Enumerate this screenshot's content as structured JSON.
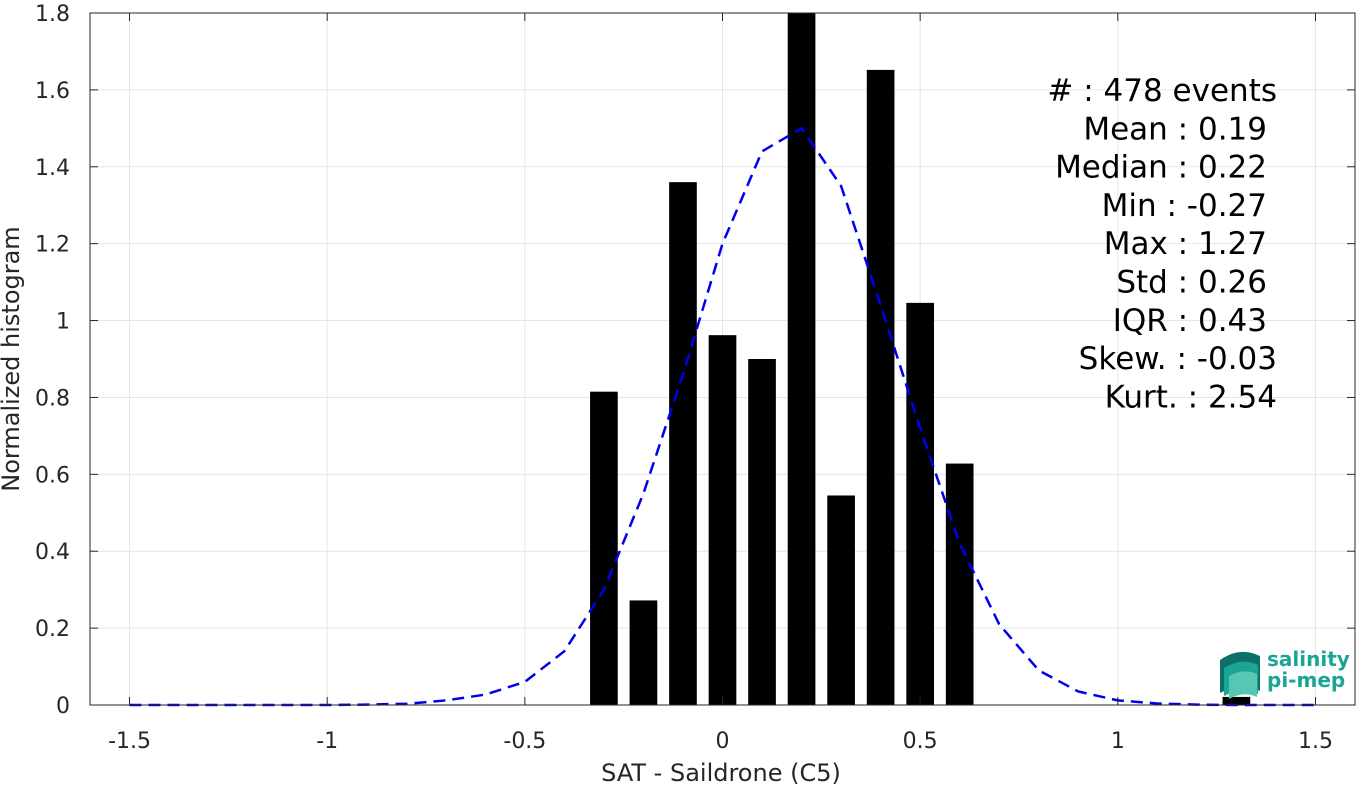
{
  "chart_data": {
    "type": "bar",
    "xlabel": "SAT - Saildrone (C5)",
    "ylabel": "Normalized histogram",
    "xlim": [
      -1.6,
      1.6
    ],
    "ylim": [
      0,
      1.8
    ],
    "xticks": [
      -1.5,
      -1,
      -0.5,
      0,
      0.5,
      1,
      1.5
    ],
    "xtick_labels": [
      "-1.5",
      "-1",
      "-0.5",
      "0",
      "0.5",
      "1",
      "1.5"
    ],
    "yticks": [
      0,
      0.2,
      0.4,
      0.6,
      0.8,
      1,
      1.2,
      1.4,
      1.6,
      1.8
    ],
    "ytick_labels": [
      "0",
      "0.2",
      "0.4",
      "0.6",
      "0.8",
      "1",
      "1.2",
      "1.4",
      "1.6",
      "1.8"
    ],
    "grid": true,
    "bar_color": "#000000",
    "bar_width": 0.07,
    "bars": {
      "x": [
        -0.3,
        -0.2,
        -0.1,
        0.0,
        0.1,
        0.2,
        0.3,
        0.4,
        0.5,
        0.6,
        1.3
      ],
      "values": [
        0.815,
        0.272,
        1.36,
        0.962,
        0.9,
        1.8,
        0.545,
        1.652,
        1.046,
        0.628,
        0.021
      ]
    },
    "fit_curve": {
      "style": "dashed",
      "color": "#0000ee",
      "x": [
        -1.5,
        -1.4,
        -1.3,
        -1.2,
        -1.1,
        -1.0,
        -0.9,
        -0.8,
        -0.7,
        -0.6,
        -0.5,
        -0.4,
        -0.3,
        -0.2,
        -0.1,
        0.0,
        0.1,
        0.2,
        0.3,
        0.4,
        0.5,
        0.6,
        0.7,
        0.8,
        0.9,
        1.0,
        1.1,
        1.2,
        1.3,
        1.4,
        1.5
      ],
      "y": [
        0.0,
        0.0,
        0.0,
        0.0,
        0.0,
        0.0,
        0.001,
        0.003,
        0.012,
        0.027,
        0.06,
        0.14,
        0.3,
        0.55,
        0.86,
        1.2,
        1.44,
        1.5,
        1.35,
        1.04,
        0.72,
        0.42,
        0.21,
        0.09,
        0.035,
        0.012,
        0.004,
        0.001,
        0.0,
        0.0,
        0.0
      ]
    },
    "stats": [
      "#  : 478 events",
      "Mean : 0.19",
      "Median : 0.22",
      "Min : -0.27",
      "Max : 1.27",
      "Std : 0.26",
      "IQR : 0.43",
      "Skew. : -0.03",
      "Kurt. : 2.54"
    ]
  },
  "logo": {
    "line1": "salinity",
    "line2": "pi-mep",
    "colors": [
      "#1aa595",
      "#0f6f68",
      "#55c7b2"
    ]
  }
}
